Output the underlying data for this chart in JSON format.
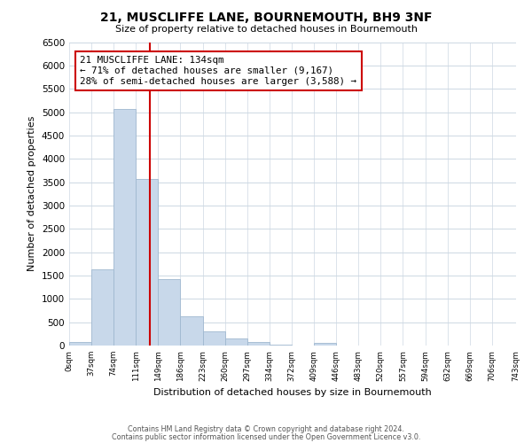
{
  "title": "21, MUSCLIFFE LANE, BOURNEMOUTH, BH9 3NF",
  "subtitle": "Size of property relative to detached houses in Bournemouth",
  "xlabel": "Distribution of detached houses by size in Bournemouth",
  "ylabel": "Number of detached properties",
  "bin_edges": [
    0,
    37,
    74,
    111,
    148,
    185,
    222,
    259,
    296,
    333,
    370,
    407,
    444,
    481,
    518,
    555,
    592,
    629,
    666,
    703,
    743
  ],
  "bin_labels": [
    "0sqm",
    "37sqm",
    "74sqm",
    "111sqm",
    "149sqm",
    "186sqm",
    "223sqm",
    "260sqm",
    "297sqm",
    "334sqm",
    "372sqm",
    "409sqm",
    "446sqm",
    "483sqm",
    "520sqm",
    "557sqm",
    "594sqm",
    "632sqm",
    "669sqm",
    "706sqm",
    "743sqm"
  ],
  "counts": [
    75,
    1625,
    5075,
    3575,
    1425,
    625,
    300,
    150,
    75,
    25,
    0,
    50,
    0,
    0,
    0,
    0,
    0,
    0,
    0,
    0
  ],
  "bar_color": "#c8d8ea",
  "bar_edge_color": "#a0b8d0",
  "property_size": 134,
  "vline_color": "#cc0000",
  "annotation_text": "21 MUSCLIFFE LANE: 134sqm\n← 71% of detached houses are smaller (9,167)\n28% of semi-detached houses are larger (3,588) →",
  "annotation_box_color": "#ffffff",
  "annotation_box_edge_color": "#cc0000",
  "ylim": [
    0,
    6500
  ],
  "yticks": [
    0,
    500,
    1000,
    1500,
    2000,
    2500,
    3000,
    3500,
    4000,
    4500,
    5000,
    5500,
    6000,
    6500
  ],
  "footer1": "Contains HM Land Registry data © Crown copyright and database right 2024.",
  "footer2": "Contains public sector information licensed under the Open Government Licence v3.0.",
  "background_color": "#ffffff",
  "grid_color": "#cdd8e3"
}
